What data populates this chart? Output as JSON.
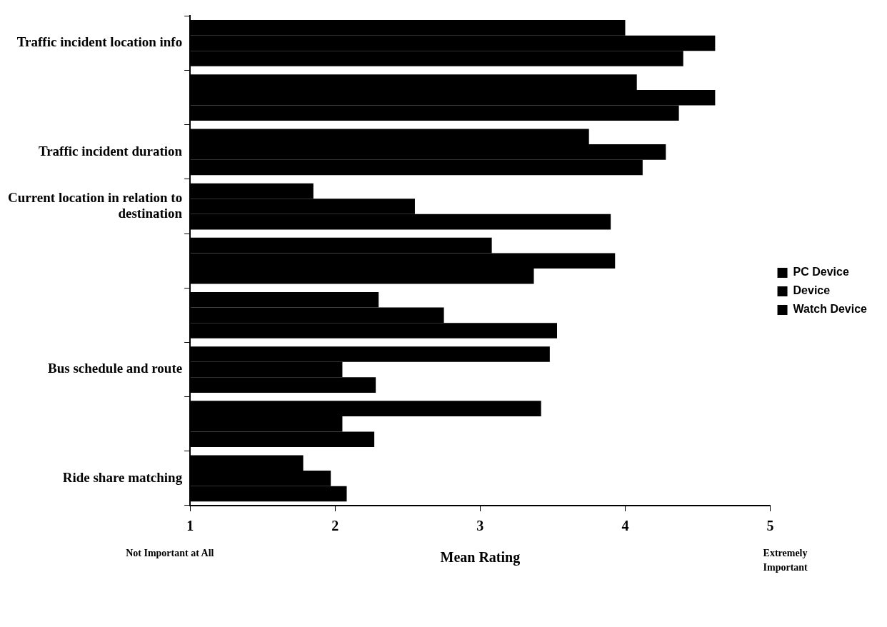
{
  "chart_data": {
    "type": "bar",
    "orientation": "horizontal",
    "xlabel": "Mean Rating",
    "annotations": [
      "Not Important at All",
      "Extremely Important"
    ],
    "categories": [
      "Traffic incident location info",
      null,
      "Traffic incident duration",
      "Current location in relation to destination",
      null,
      null,
      "Bus schedule and route",
      null,
      "Ride share matching"
    ],
    "series": [
      {
        "name": "PC Device",
        "color": "#000000",
        "values": [
          4.0,
          4.08,
          3.75,
          1.85,
          3.08,
          2.3,
          3.48,
          3.42,
          1.78
        ]
      },
      {
        "name": "Device",
        "color": "#000000",
        "values": [
          4.62,
          4.62,
          4.28,
          2.55,
          3.93,
          2.75,
          2.05,
          2.05,
          1.97
        ]
      },
      {
        "name": "Watch Device",
        "color": "#000000",
        "values": [
          4.4,
          4.37,
          4.12,
          3.9,
          3.37,
          3.53,
          2.28,
          2.27,
          2.08
        ]
      }
    ],
    "xlim": [
      1,
      5
    ],
    "xticks": [
      1,
      2,
      3,
      4,
      5
    ],
    "grid": false,
    "legend": "right"
  }
}
